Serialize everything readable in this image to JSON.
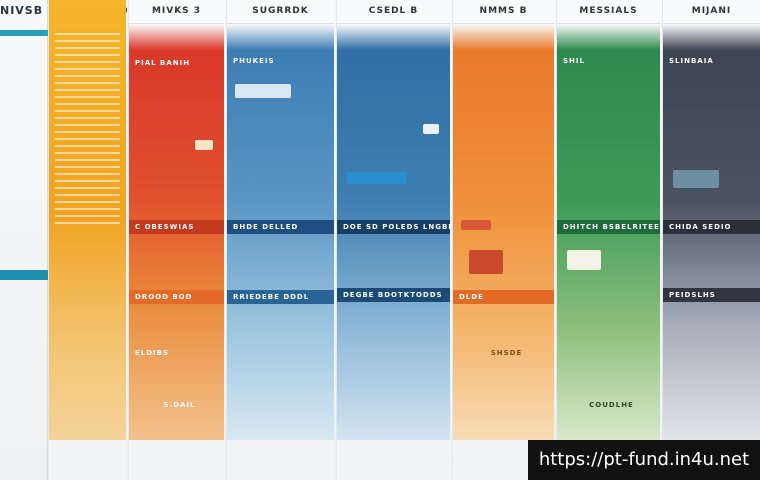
{
  "title": "NIVSB BIE TUVIBO",
  "columns": [
    {
      "caption": "MIVKS 3",
      "band_main": "PIAL BANIH",
      "band_mid": "C OBESWIAS",
      "band_low": "DROOD BOD",
      "band_low2": "ELDIBS",
      "foot": "S.DAIL",
      "color_top": "#d9382b",
      "color_bot": "#ea8a3a"
    },
    {
      "caption": "SUGRRDK",
      "band_main": "PHUKEIS",
      "band_mid": "BHDE DELLED",
      "band_low": "RRIEDEBE DDDL",
      "band_low2": "",
      "foot": "",
      "color_top": "#3d7db4",
      "color_bot": "#9cc6e0"
    },
    {
      "caption": "CSEDL B",
      "band_main": "",
      "band_mid": "DOE SD POLEDS LNGBE",
      "band_low": "DEGBE BDOTKTODDS",
      "band_low2": "",
      "foot": "",
      "color_top": "#2f6fa5",
      "color_bot": "#8fb9d9"
    },
    {
      "caption": "NMMS B",
      "band_main": "",
      "band_mid": "",
      "band_low": "DLDE",
      "band_low2": "SHSDE",
      "foot": "",
      "color_top": "#ea7a2b",
      "color_bot": "#f4b56b"
    },
    {
      "caption": "MESSIALS",
      "band_main": "SHIL",
      "band_mid": "DHITCH BSBELRITEE",
      "band_low": "",
      "band_low2": "",
      "foot": "COUDLHE",
      "color_top": "#2e8a4e",
      "color_bot": "#8ec07c"
    },
    {
      "caption": "MIJANI",
      "band_main": "SLINBAIA",
      "band_mid": "CHIDA SEDIO",
      "band_low": "PEIDSLHS",
      "band_low2": "",
      "foot": "",
      "color_top": "#3d4452",
      "color_bot": "#a9b0bc"
    }
  ],
  "watermark": "https://pt-fund.in4u.net"
}
